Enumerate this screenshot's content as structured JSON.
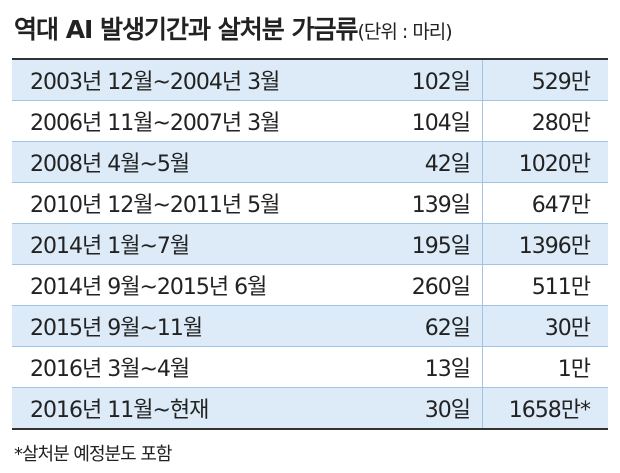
{
  "header": {
    "title": "역대 AI 발생기간과 살처분 가금류",
    "unit": "(단위 : 마리)"
  },
  "table": {
    "rows": [
      [
        "2003년 12월~2004년 3월",
        "102일",
        "529만"
      ],
      [
        "2006년 11월~2007년 3월",
        "104일",
        "280만"
      ],
      [
        "2008년 4월~5월",
        "42일",
        "1020만"
      ],
      [
        "2010년 12월~2011년 5월",
        "139일",
        "647만"
      ],
      [
        "2014년 1월~7월",
        "195일",
        "1396만"
      ],
      [
        "2014년 9월~2015년 6월",
        "260일",
        "511만"
      ],
      [
        "2015년 9월~11월",
        "62일",
        "30만"
      ],
      [
        "2016년 3월~4월",
        "13일",
        "1만"
      ],
      [
        "2016년 11월~현재",
        "30일",
        "1658만*"
      ]
    ]
  },
  "footnote": "*살처분 예정분도 포함"
}
